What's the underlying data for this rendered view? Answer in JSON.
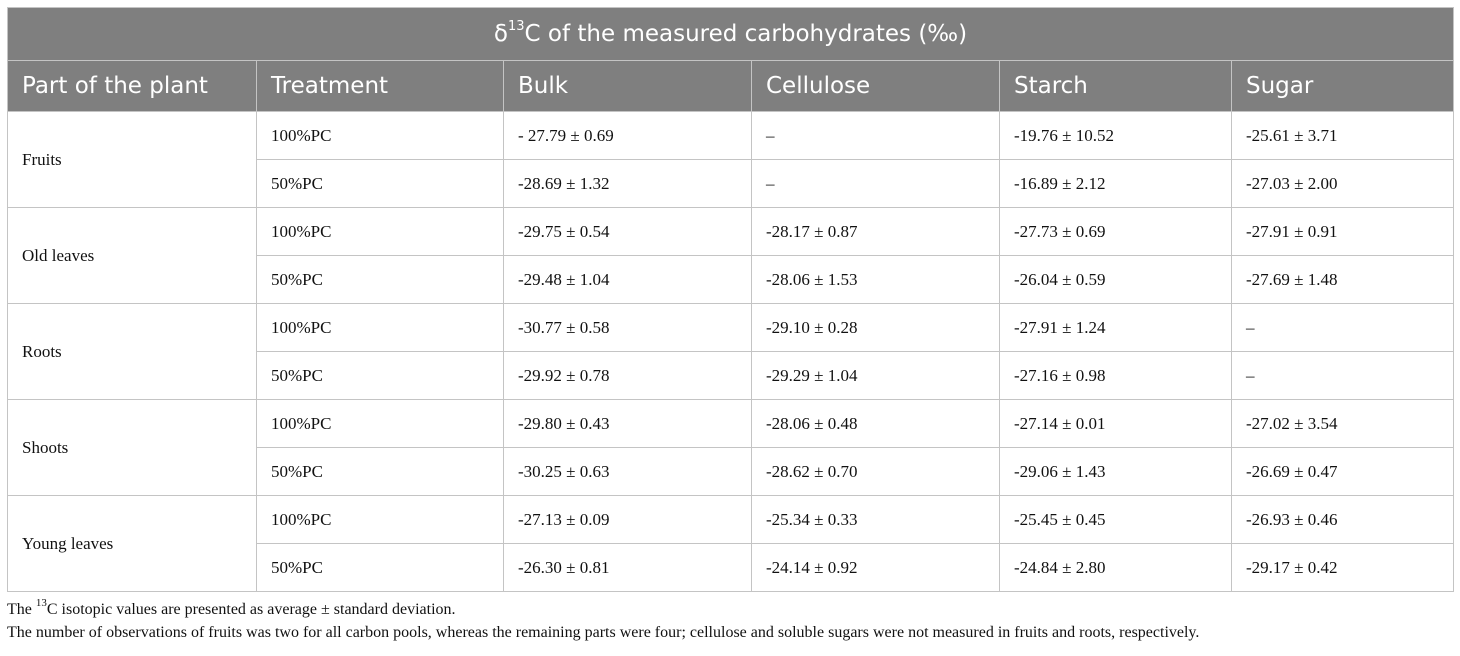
{
  "table": {
    "title_prefix": "δ",
    "title_sup": "13",
    "title_rest": "C of the measured carbohydrates (‰)",
    "headers": [
      "Part of the plant",
      "Treatment",
      "Bulk",
      "Cellulose",
      "Starch",
      "Sugar"
    ],
    "groups": [
      {
        "part": "Fruits",
        "rows": [
          {
            "treatment": "100%PC",
            "bulk": "- 27.79 ± 0.69",
            "cellulose": "–",
            "starch": "-19.76 ± 10.52",
            "sugar": "-25.61 ± 3.71"
          },
          {
            "treatment": "50%PC",
            "bulk": "-28.69 ± 1.32",
            "cellulose": "–",
            "starch": "-16.89 ± 2.12",
            "sugar": "-27.03 ± 2.00"
          }
        ]
      },
      {
        "part": "Old leaves",
        "rows": [
          {
            "treatment": "100%PC",
            "bulk": "-29.75 ± 0.54",
            "cellulose": "-28.17 ± 0.87",
            "starch": "-27.73 ± 0.69",
            "sugar": "-27.91 ± 0.91"
          },
          {
            "treatment": "50%PC",
            "bulk": "-29.48 ± 1.04",
            "cellulose": "-28.06 ± 1.53",
            "starch": "-26.04 ± 0.59",
            "sugar": "-27.69 ± 1.48"
          }
        ]
      },
      {
        "part": "Roots",
        "rows": [
          {
            "treatment": "100%PC",
            "bulk": "-30.77 ± 0.58",
            "cellulose": "-29.10 ± 0.28",
            "starch": "-27.91 ± 1.24",
            "sugar": "–"
          },
          {
            "treatment": "50%PC",
            "bulk": "-29.92 ± 0.78",
            "cellulose": "-29.29 ± 1.04",
            "starch": "-27.16 ± 0.98",
            "sugar": "–"
          }
        ]
      },
      {
        "part": "Shoots",
        "rows": [
          {
            "treatment": "100%PC",
            "bulk": "-29.80 ± 0.43",
            "cellulose": "-28.06 ± 0.48",
            "starch": "-27.14 ± 0.01",
            "sugar": "-27.02 ± 3.54"
          },
          {
            "treatment": "50%PC",
            "bulk": "-30.25 ± 0.63",
            "cellulose": "-28.62 ± 0.70",
            "starch": "-29.06 ± 1.43",
            "sugar": "-26.69 ± 0.47"
          }
        ]
      },
      {
        "part": "Young leaves",
        "rows": [
          {
            "treatment": "100%PC",
            "bulk": "-27.13 ± 0.09",
            "cellulose": "-25.34 ± 0.33",
            "starch": "-25.45 ± 0.45",
            "sugar": "-26.93 ± 0.46"
          },
          {
            "treatment": "50%PC",
            "bulk": "-26.30 ± 0.81",
            "cellulose": "-24.14 ± 0.92",
            "starch": "-24.84 ± 2.80",
            "sugar": "-29.17 ± 0.42"
          }
        ]
      }
    ]
  },
  "footnotes": {
    "note1_prefix": "The ",
    "note1_sup": "13",
    "note1_rest": "C isotopic values are presented as average ± standard deviation.",
    "note2": "The number of observations of fruits was two for all carbon pools, whereas the remaining parts were four; cellulose and soluble sugars were not measured in fruits and roots, respectively."
  },
  "colors": {
    "header_bg": "#7f7f7f",
    "header_text": "#ffffff",
    "grid": "#c4c4c4"
  }
}
